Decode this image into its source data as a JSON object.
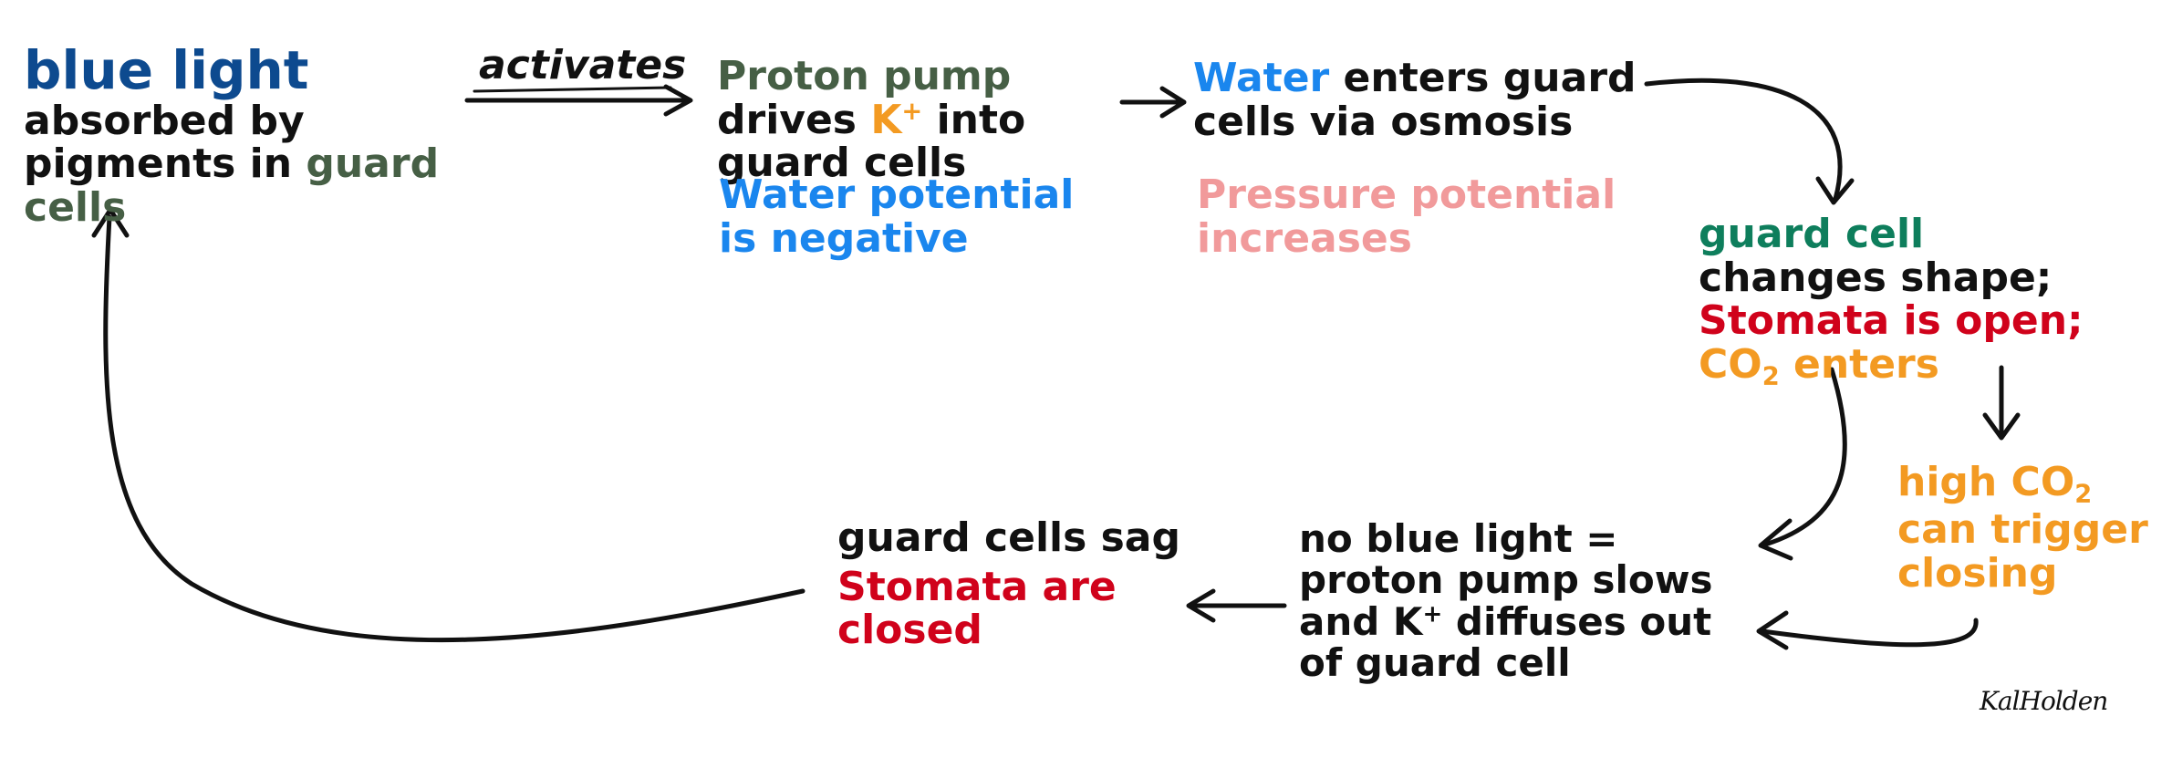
{
  "diagram": {
    "edge_label": "activates",
    "signature": "KalHolden",
    "nodes": {
      "blue_light": {
        "p1": "blue light",
        "p2": " absorbed by pigments in ",
        "p3": "guard cells"
      },
      "proton_pump": {
        "p1": "Proton pump",
        "p2": " drives ",
        "p3": "K",
        "p3_sup": "+",
        "p4": " into guard cells"
      },
      "water_potential": {
        "text": "Water potential is negative"
      },
      "water_enters": {
        "p1": "Water",
        "p2": " enters guard cells via osmosis"
      },
      "pressure_potential": {
        "text": "Pressure potential increases"
      },
      "guard_cell_shape": {
        "p1": "guard cell",
        "p2": " changes shape; ",
        "p3": "Stomata is open;",
        "p4": " CO",
        "p4_sub": "2",
        "p5": " enters"
      },
      "high_co2": {
        "p1": "high CO",
        "p1_sub": "2",
        "p2": " can trigger closing"
      },
      "no_blue_light": {
        "p1": "no blue light = proton pump slows and K",
        "p1_sup": "+",
        "p2": " diffuses out of guard cell"
      },
      "guard_cells_sag": {
        "p1": "guard cells sag",
        "p2": "Stomata are closed"
      }
    },
    "colors": {
      "navy": "#0d4a8f",
      "olive": "#465f45",
      "orange": "#f39a22",
      "blue": "#1a86ee",
      "pink": "#f19a9b",
      "teal": "#0e7e5c",
      "red": "#d0021b",
      "ink": "#111111"
    }
  }
}
